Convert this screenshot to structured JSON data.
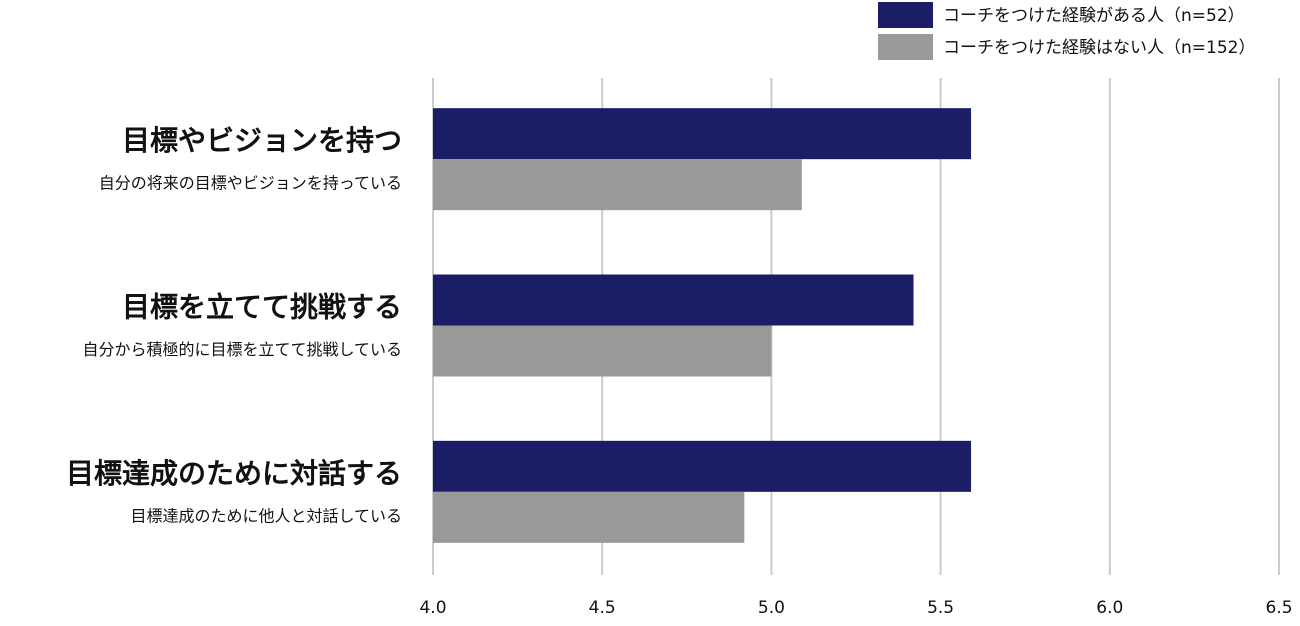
{
  "chart_data": {
    "type": "hbar",
    "categories": [
      "目標やビジョンを持つ",
      "目標を立てて挑戦する",
      "目標達成のために対話する"
    ],
    "category_descriptions": [
      "自分の将来の目標やビジョンを持っている",
      "自分から積極的に目標を立てて挑戦している",
      "目標達成のために他人と対話している"
    ],
    "series": [
      {
        "name": "コーチをつけた経験がある人（n=52）",
        "color": "#1b1e67",
        "values": [
          5.59,
          5.42,
          5.59
        ]
      },
      {
        "name": "コーチをつけた経験はない人（n=152）",
        "color": "#999999",
        "values": [
          5.09,
          5.0,
          4.92
        ]
      }
    ],
    "xlim": [
      4,
      6.5
    ],
    "xticks": [
      {
        "value": 4,
        "label": "4.0"
      },
      {
        "value": 4.5,
        "label": "4.5"
      },
      {
        "value": 5,
        "label": "5.0"
      },
      {
        "value": 5.5,
        "label": "5.5"
      },
      {
        "value": 6,
        "label": "6.0"
      },
      {
        "value": 6.5,
        "label": "6.5"
      }
    ],
    "grid": true,
    "legend": "top-right"
  }
}
